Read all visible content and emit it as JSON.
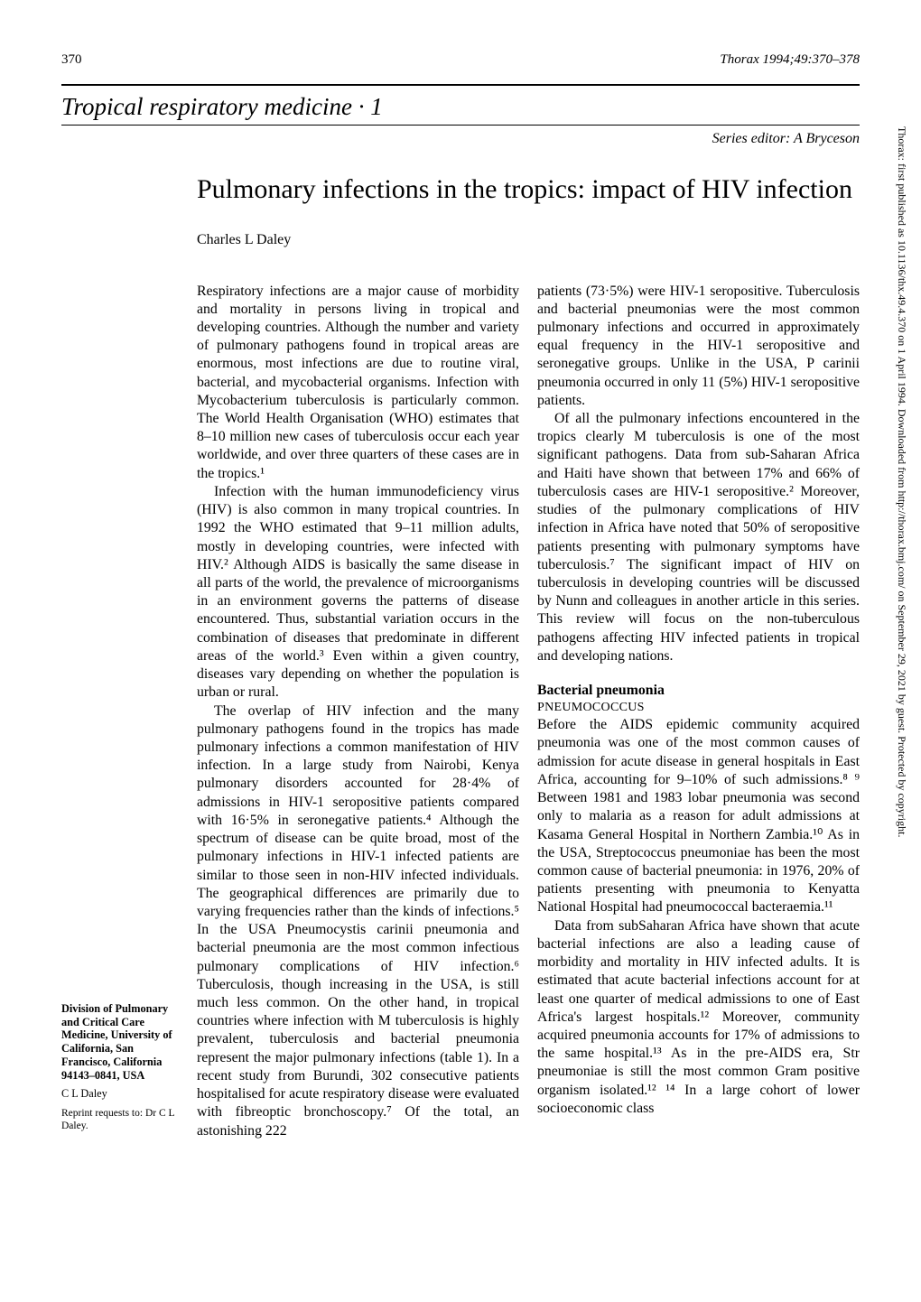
{
  "header": {
    "page_number": "370",
    "journal_ref": "Thorax 1994;49:370–378"
  },
  "series": {
    "title": "Tropical respiratory medicine · 1",
    "editor_line": "Series editor: A Bryceson"
  },
  "article": {
    "title": "Pulmonary infections in the tropics: impact of HIV infection",
    "author": "Charles L Daley"
  },
  "body": {
    "left": {
      "p1": "Respiratory infections are a major cause of morbidity and mortality in persons living in tropical and developing countries. Although the number and variety of pulmonary pathogens found in tropical areas are enormous, most infections are due to routine viral, bacterial, and mycobacterial organisms. Infection with Mycobacterium tuberculosis is particularly common. The World Health Organisation (WHO) estimates that 8–10 million new cases of tuberculosis occur each year worldwide, and over three quarters of these cases are in the tropics.¹",
      "p2": "Infection with the human immunodeficiency virus (HIV) is also common in many tropical countries. In 1992 the WHO estimated that 9–11 million adults, mostly in developing countries, were infected with HIV.² Although AIDS is basically the same disease in all parts of the world, the prevalence of microorganisms in an environment governs the patterns of disease encountered. Thus, substantial variation occurs in the combination of diseases that predominate in different areas of the world.³ Even within a given country, diseases vary depending on whether the population is urban or rural.",
      "p3": "The overlap of HIV infection and the many pulmonary pathogens found in the tropics has made pulmonary infections a common manifestation of HIV infection. In a large study from Nairobi, Kenya pulmonary disorders accounted for 28·4% of admissions in HIV-1 seropositive patients compared with 16·5% in seronegative patients.⁴ Although the spectrum of disease can be quite broad, most of the pulmonary infections in HIV-1 infected patients are similar to those seen in non-HIV infected individuals. The geographical differences are primarily due to varying frequencies rather than the kinds of infections.⁵ In the USA Pneumocystis carinii pneumonia and bacterial pneumonia are the most common infectious pulmonary complications of HIV infection.⁶ Tuberculosis, though increasing in the USA, is still much less common. On the other hand, in tropical countries where infection with M tuberculosis is highly prevalent, tuberculosis and bacterial pneumonia represent the major pulmonary infections (table 1). In a recent study from Burundi, 302 consecutive patients hospitalised for acute respiratory disease were evaluated with fibreoptic bronchoscopy.⁷ Of the total, an astonishing 222"
    },
    "right": {
      "p1": "patients (73·5%) were HIV-1 seropositive. Tuberculosis and bacterial pneumonias were the most common pulmonary infections and occurred in approximately equal frequency in the HIV-1 seropositive and seronegative groups. Unlike in the USA, P carinii pneumonia occurred in only 11 (5%) HIV-1 seropositive patients.",
      "p2": "Of all the pulmonary infections encountered in the tropics clearly M tuberculosis is one of the most significant pathogens. Data from sub-Saharan Africa and Haiti have shown that between 17% and 66% of tuberculosis cases are HIV-1 seropositive.² Moreover, studies of the pulmonary complications of HIV infection in Africa have noted that 50% of seropositive patients presenting with pulmonary symptoms have tuberculosis.⁷ The significant impact of HIV on tuberculosis in developing countries will be discussed by Nunn and colleagues in another article in this series. This review will focus on the non-tuberculous pathogens affecting HIV infected patients in tropical and developing nations.",
      "section_head": "Bacterial pneumonia",
      "sub_head": "PNEUMOCOCCUS",
      "p3": "Before the AIDS epidemic community acquired pneumonia was one of the most common causes of admission for acute disease in general hospitals in East Africa, accounting for 9–10% of such admissions.⁸ ⁹ Between 1981 and 1983 lobar pneumonia was second only to malaria as a reason for adult admissions at Kasama General Hospital in Northern Zambia.¹⁰ As in the USA, Streptococcus pneumoniae has been the most common cause of bacterial pneumonia: in 1976, 20% of patients presenting with pneumonia to Kenyatta National Hospital had pneumococcal bacteraemia.¹¹",
      "p4": "Data from subSaharan Africa have shown that acute bacterial infections are also a leading cause of morbidity and mortality in HIV infected adults. It is estimated that acute bacterial infections account for at least one quarter of medical admissions to one of East Africa's largest hospitals.¹² Moreover, community acquired pneumonia accounts for 17% of admissions to the same hospital.¹³ As in the pre-AIDS era, Str pneumoniae is still the most common Gram positive organism isolated.¹² ¹⁴ In a large cohort of lower socioeconomic class"
    }
  },
  "affiliation": {
    "affil": "Division of Pulmonary and Critical Care Medicine, University of California, San Francisco, California 94143–0841, USA",
    "author_short": "C L Daley",
    "reprint": "Reprint requests to: Dr C L Daley."
  },
  "sidebar": {
    "text": "Thorax: first published as 10.1136/thx.49.4.370 on 1 April 1994. Downloaded from http://thorax.bmj.com/ on September 29, 2021 by guest. Protected by copyright."
  }
}
